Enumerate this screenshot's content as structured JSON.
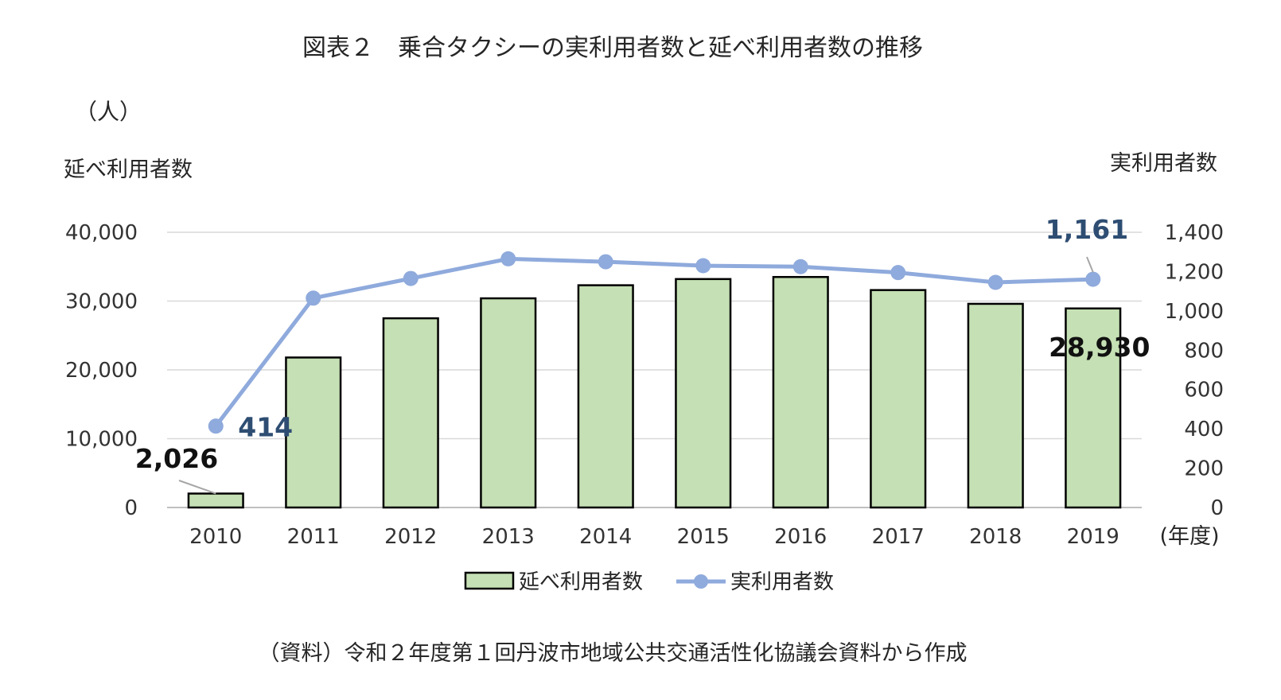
{
  "title": "図表２　乗合タクシーの実利用者数と延べ利用者数の推移",
  "unit_label": "（人）",
  "source_note": "（資料）令和２年度第１回丹波市地域公共交通活性化協議会資料から作成",
  "chart_data": {
    "type": "bar",
    "combo": "bar + line (secondary axis)",
    "categories": [
      "2010",
      "2011",
      "2012",
      "2013",
      "2014",
      "2015",
      "2016",
      "2017",
      "2018",
      "2019"
    ],
    "xlabel": "(年度)",
    "ylabel": "延べ利用者数",
    "y2label": "実利用者数",
    "ylim": [
      0,
      40000
    ],
    "y2lim": [
      0,
      1400
    ],
    "yticks": [
      "0",
      "10,000",
      "20,000",
      "30,000",
      "40,000"
    ],
    "y2ticks": [
      "0",
      "200",
      "400",
      "600",
      "800",
      "1,000",
      "1,200",
      "1,400"
    ],
    "grid": true,
    "legend_position": "bottom",
    "series": [
      {
        "name": "延べ利用者数",
        "type": "bar",
        "color": "#c5e0b4",
        "stroke": "#000000",
        "values": [
          2026,
          21800,
          27500,
          30400,
          32300,
          33200,
          33500,
          31600,
          29600,
          28930
        ]
      },
      {
        "name": "実利用者数",
        "type": "line",
        "axis": "secondary",
        "color": "#8faadc",
        "values": [
          414,
          1065,
          1165,
          1265,
          1250,
          1230,
          1225,
          1195,
          1145,
          1161
        ]
      }
    ],
    "data_labels": {
      "bar_2010": "2,026",
      "bar_2019": "28,930",
      "line_2010": "414",
      "line_2019": "1,161"
    }
  }
}
